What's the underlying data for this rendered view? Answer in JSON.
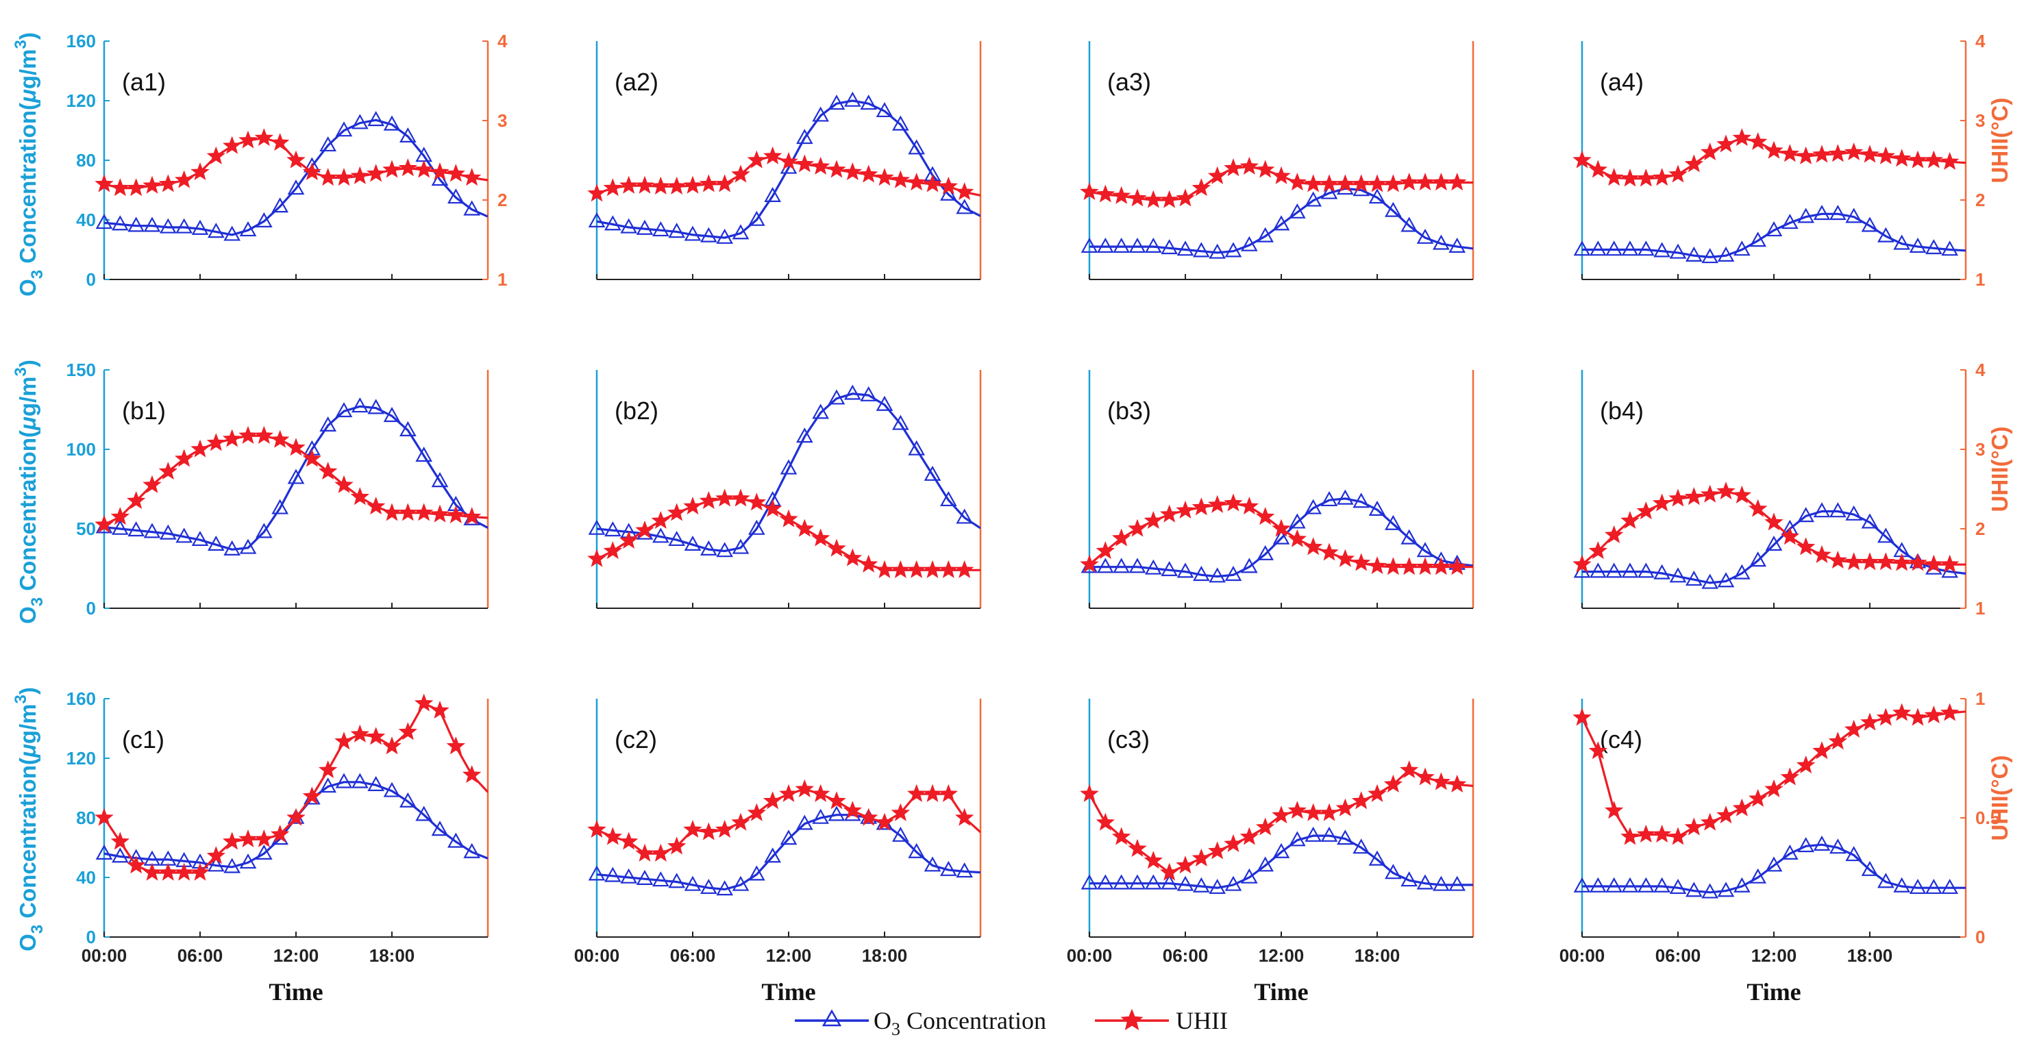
{
  "figure": {
    "xlabel": "Time",
    "left_axis_label": {
      "prefix": "O",
      "subscript": "3",
      "main": " Concentration(",
      "unit_mu": "μ",
      "unit_rest": "g/m",
      "superscript": "3",
      "close": ")"
    },
    "right_axis_label": "UHII(°C)",
    "legend": {
      "o3": {
        "prefix": "O",
        "subscript": "3",
        "suffix": " Concentration"
      },
      "uhii": "UHII"
    },
    "colors": {
      "o3": "#1f2fd6",
      "uhii": "#ee1c25",
      "left_axis": "#1aa0d8",
      "right_axis": "#f26a3a"
    }
  },
  "chart_data": [
    {
      "panel": "(a1)",
      "type": "line",
      "xticks": [
        "00:00",
        "06:00",
        "12:00",
        "18:00"
      ],
      "xlim": [
        0,
        24
      ],
      "ylim_left": [
        0,
        160
      ],
      "yticks_left": [
        "0",
        "40",
        "80",
        "120",
        "160"
      ],
      "ylim_right": [
        1,
        4
      ],
      "yticks_right": [
        "1",
        "2",
        "3",
        "4"
      ],
      "series": [
        {
          "name": "O3 Concentration",
          "axis": "left",
          "values": [
            38,
            37,
            36,
            36,
            35,
            35,
            34,
            32,
            30,
            33,
            39,
            49,
            61,
            76,
            90,
            100,
            105,
            107,
            104,
            96,
            83,
            67,
            55,
            47
          ]
        },
        {
          "name": "UHII",
          "axis": "right",
          "values": [
            2.2,
            2.15,
            2.15,
            2.18,
            2.2,
            2.25,
            2.35,
            2.55,
            2.68,
            2.75,
            2.78,
            2.72,
            2.5,
            2.35,
            2.28,
            2.28,
            2.3,
            2.33,
            2.38,
            2.4,
            2.38,
            2.35,
            2.33,
            2.28
          ]
        }
      ]
    },
    {
      "panel": "(a2)",
      "type": "line",
      "xticks": [
        "00:00",
        "06:00",
        "12:00",
        "18:00"
      ],
      "xlim": [
        0,
        24
      ],
      "ylim_left": [
        0,
        160
      ],
      "yticks_left": [],
      "ylim_right": [
        1,
        4
      ],
      "yticks_right": [],
      "series": [
        {
          "name": "O3 Concentration",
          "axis": "left",
          "values": [
            39,
            37,
            35,
            34,
            33,
            32,
            30,
            29,
            28,
            31,
            40,
            56,
            75,
            95,
            110,
            118,
            120,
            118,
            113,
            104,
            88,
            70,
            57,
            48
          ]
        },
        {
          "name": "UHII",
          "axis": "right",
          "values": [
            2.08,
            2.15,
            2.18,
            2.18,
            2.17,
            2.17,
            2.18,
            2.2,
            2.2,
            2.32,
            2.5,
            2.55,
            2.48,
            2.45,
            2.42,
            2.38,
            2.35,
            2.32,
            2.28,
            2.25,
            2.22,
            2.2,
            2.17,
            2.1
          ]
        }
      ]
    },
    {
      "panel": "(a3)",
      "type": "line",
      "xticks": [
        "00:00",
        "06:00",
        "12:00",
        "18:00"
      ],
      "xlim": [
        0,
        24
      ],
      "ylim_left": [
        0,
        160
      ],
      "yticks_left": [],
      "ylim_right": [
        1,
        4
      ],
      "yticks_right": [],
      "series": [
        {
          "name": "O3 Concentration",
          "axis": "left",
          "values": [
            22,
            22,
            22,
            22,
            22,
            21,
            20,
            19,
            18,
            19,
            23,
            29,
            37,
            45,
            53,
            58,
            61,
            60,
            55,
            46,
            36,
            28,
            24,
            22
          ]
        },
        {
          "name": "UHII",
          "axis": "right",
          "values": [
            2.1,
            2.07,
            2.05,
            2.02,
            2.0,
            2.0,
            2.02,
            2.15,
            2.3,
            2.4,
            2.42,
            2.38,
            2.3,
            2.22,
            2.2,
            2.2,
            2.2,
            2.2,
            2.2,
            2.2,
            2.22,
            2.22,
            2.22,
            2.22
          ]
        }
      ]
    },
    {
      "panel": "(a4)",
      "type": "line",
      "xticks": [
        "00:00",
        "06:00",
        "12:00",
        "18:00"
      ],
      "xlim": [
        0,
        24
      ],
      "ylim_left": [
        0,
        160
      ],
      "yticks_left": [],
      "ylim_right": [
        1,
        4
      ],
      "yticks_right": [
        "1",
        "2",
        "3",
        "4"
      ],
      "series": [
        {
          "name": "O3 Concentration",
          "axis": "left",
          "values": [
            20,
            20,
            20,
            20,
            20,
            19,
            18,
            16,
            15,
            16,
            20,
            26,
            33,
            38,
            42,
            44,
            44,
            42,
            36,
            29,
            24,
            22,
            21,
            20
          ]
        },
        {
          "name": "UHII",
          "axis": "right",
          "values": [
            2.5,
            2.38,
            2.28,
            2.27,
            2.27,
            2.28,
            2.32,
            2.45,
            2.6,
            2.7,
            2.78,
            2.73,
            2.62,
            2.58,
            2.55,
            2.57,
            2.58,
            2.6,
            2.57,
            2.55,
            2.52,
            2.5,
            2.5,
            2.48
          ]
        }
      ]
    },
    {
      "panel": "(b1)",
      "type": "line",
      "xticks": [
        "00:00",
        "06:00",
        "12:00",
        "18:00"
      ],
      "xlim": [
        0,
        24
      ],
      "ylim_left": [
        0,
        150
      ],
      "yticks_left": [
        "0",
        "50",
        "100",
        "150"
      ],
      "ylim_right": [
        1,
        4
      ],
      "yticks_right": [],
      "series": [
        {
          "name": "O3 Concentration",
          "axis": "left",
          "values": [
            51,
            50,
            49,
            48,
            47,
            45,
            43,
            40,
            37,
            38,
            48,
            63,
            82,
            100,
            115,
            124,
            127,
            126,
            121,
            112,
            96,
            80,
            65,
            56
          ]
        },
        {
          "name": "UHII",
          "axis": "right",
          "values": [
            2.05,
            2.15,
            2.35,
            2.55,
            2.72,
            2.88,
            3.0,
            3.08,
            3.13,
            3.17,
            3.17,
            3.12,
            3.02,
            2.88,
            2.72,
            2.55,
            2.4,
            2.28,
            2.2,
            2.2,
            2.2,
            2.18,
            2.17,
            2.15
          ]
        }
      ]
    },
    {
      "panel": "(b2)",
      "type": "line",
      "xticks": [
        "00:00",
        "06:00",
        "12:00",
        "18:00"
      ],
      "xlim": [
        0,
        24
      ],
      "ylim_left": [
        0,
        150
      ],
      "yticks_left": [],
      "ylim_right": [
        1,
        4
      ],
      "yticks_right": [],
      "series": [
        {
          "name": "O3 Concentration",
          "axis": "left",
          "values": [
            50,
            49,
            48,
            47,
            45,
            43,
            40,
            37,
            36,
            38,
            50,
            68,
            88,
            108,
            123,
            132,
            135,
            134,
            128,
            116,
            100,
            84,
            68,
            57
          ]
        },
        {
          "name": "UHII",
          "axis": "right",
          "values": [
            1.62,
            1.72,
            1.85,
            1.98,
            2.1,
            2.2,
            2.28,
            2.35,
            2.38,
            2.38,
            2.33,
            2.25,
            2.12,
            2.0,
            1.88,
            1.75,
            1.63,
            1.55,
            1.48,
            1.48,
            1.48,
            1.48,
            1.48,
            1.48
          ]
        }
      ]
    },
    {
      "panel": "(b3)",
      "type": "line",
      "xticks": [
        "00:00",
        "06:00",
        "12:00",
        "18:00"
      ],
      "xlim": [
        0,
        24
      ],
      "ylim_left": [
        0,
        150
      ],
      "yticks_left": [],
      "ylim_right": [
        1,
        4
      ],
      "yticks_right": [],
      "series": [
        {
          "name": "O3 Concentration",
          "axis": "left",
          "values": [
            26,
            26,
            26,
            26,
            25,
            24,
            23,
            21,
            20,
            21,
            26,
            34,
            44,
            54,
            63,
            68,
            69,
            67,
            62,
            53,
            44,
            36,
            30,
            28
          ]
        },
        {
          "name": "UHII",
          "axis": "right",
          "values": [
            1.55,
            1.72,
            1.88,
            2.0,
            2.1,
            2.18,
            2.23,
            2.27,
            2.3,
            2.32,
            2.28,
            2.15,
            2.0,
            1.87,
            1.77,
            1.7,
            1.62,
            1.57,
            1.53,
            1.52,
            1.52,
            1.52,
            1.52,
            1.52
          ]
        }
      ]
    },
    {
      "panel": "(b4)",
      "type": "line",
      "xticks": [
        "00:00",
        "06:00",
        "12:00",
        "18:00"
      ],
      "xlim": [
        0,
        24
      ],
      "ylim_left": [
        0,
        150
      ],
      "yticks_left": [],
      "ylim_right": [
        1,
        4
      ],
      "yticks_right": [
        "1",
        "2",
        "3",
        "4"
      ],
      "series": [
        {
          "name": "O3 Concentration",
          "axis": "left",
          "values": [
            23,
            23,
            23,
            23,
            23,
            22,
            20,
            18,
            16,
            17,
            22,
            30,
            40,
            50,
            58,
            61,
            61,
            59,
            54,
            45,
            36,
            29,
            25,
            23
          ]
        },
        {
          "name": "UHII",
          "axis": "right",
          "values": [
            1.55,
            1.72,
            1.92,
            2.1,
            2.22,
            2.32,
            2.38,
            2.4,
            2.43,
            2.47,
            2.42,
            2.25,
            2.08,
            1.9,
            1.77,
            1.67,
            1.6,
            1.58,
            1.58,
            1.58,
            1.57,
            1.57,
            1.55,
            1.55
          ]
        }
      ]
    },
    {
      "panel": "(c1)",
      "type": "line",
      "xticks": [
        "00:00",
        "06:00",
        "12:00",
        "18:00"
      ],
      "xlim": [
        0,
        24
      ],
      "ylim_left": [
        0,
        160
      ],
      "yticks_left": [
        "0",
        "40",
        "80",
        "120",
        "160"
      ],
      "ylim_right": [
        0,
        1
      ],
      "yticks_right": [],
      "series": [
        {
          "name": "O3 Concentration",
          "axis": "left",
          "values": [
            56,
            54,
            53,
            52,
            52,
            51,
            50,
            48,
            47,
            50,
            56,
            66,
            80,
            93,
            101,
            104,
            104,
            102,
            98,
            91,
            82,
            72,
            64,
            57
          ]
        },
        {
          "name": "UHII",
          "axis": "right",
          "values": [
            0.5,
            0.4,
            0.3,
            0.27,
            0.27,
            0.27,
            0.27,
            0.34,
            0.4,
            0.41,
            0.41,
            0.43,
            0.5,
            0.59,
            0.7,
            0.82,
            0.85,
            0.84,
            0.8,
            0.86,
            0.98,
            0.95,
            0.8,
            0.68
          ]
        }
      ]
    },
    {
      "panel": "(c2)",
      "type": "line",
      "xticks": [
        "00:00",
        "06:00",
        "12:00",
        "18:00"
      ],
      "xlim": [
        0,
        24
      ],
      "ylim_left": [
        0,
        160
      ],
      "yticks_left": [],
      "ylim_right": [
        0,
        1
      ],
      "yticks_right": [],
      "series": [
        {
          "name": "O3 Concentration",
          "axis": "left",
          "values": [
            42,
            41,
            40,
            39,
            38,
            37,
            35,
            33,
            32,
            35,
            42,
            54,
            66,
            76,
            80,
            82,
            82,
            80,
            76,
            68,
            57,
            48,
            45,
            44
          ]
        },
        {
          "name": "UHII",
          "axis": "right",
          "values": [
            0.45,
            0.42,
            0.4,
            0.35,
            0.35,
            0.38,
            0.45,
            0.44,
            0.45,
            0.48,
            0.52,
            0.57,
            0.6,
            0.62,
            0.6,
            0.57,
            0.53,
            0.5,
            0.48,
            0.52,
            0.6,
            0.6,
            0.6,
            0.5
          ]
        }
      ]
    },
    {
      "panel": "(c3)",
      "type": "line",
      "xticks": [
        "00:00",
        "06:00",
        "12:00",
        "18:00"
      ],
      "xlim": [
        0,
        24
      ],
      "ylim_left": [
        0,
        160
      ],
      "yticks_left": [],
      "ylim_right": [
        0,
        1
      ],
      "yticks_right": [],
      "series": [
        {
          "name": "O3 Concentration",
          "axis": "left",
          "values": [
            36,
            36,
            36,
            36,
            36,
            36,
            35,
            34,
            33,
            35,
            40,
            48,
            57,
            65,
            68,
            68,
            66,
            60,
            52,
            43,
            38,
            36,
            35,
            35
          ]
        },
        {
          "name": "UHII",
          "axis": "right",
          "values": [
            0.6,
            0.48,
            0.42,
            0.37,
            0.32,
            0.27,
            0.3,
            0.33,
            0.36,
            0.39,
            0.42,
            0.46,
            0.51,
            0.53,
            0.52,
            0.52,
            0.54,
            0.57,
            0.6,
            0.64,
            0.7,
            0.67,
            0.65,
            0.64
          ]
        }
      ]
    },
    {
      "panel": "(c4)",
      "type": "line",
      "xticks": [
        "00:00",
        "06:00",
        "12:00",
        "18:00"
      ],
      "xlim": [
        0,
        24
      ],
      "ylim_left": [
        0,
        160
      ],
      "yticks_left": [],
      "ylim_right": [
        0,
        1
      ],
      "yticks_right": [
        "0",
        "0.5",
        "1"
      ],
      "series": [
        {
          "name": "O3 Concentration",
          "axis": "left",
          "values": [
            34,
            34,
            34,
            34,
            34,
            34,
            33,
            31,
            30,
            31,
            34,
            40,
            48,
            56,
            61,
            62,
            60,
            55,
            45,
            37,
            34,
            33,
            33,
            33
          ]
        },
        {
          "name": "UHII",
          "axis": "right",
          "values": [
            0.92,
            0.78,
            0.53,
            0.42,
            0.43,
            0.43,
            0.42,
            0.46,
            0.48,
            0.51,
            0.54,
            0.58,
            0.62,
            0.67,
            0.72,
            0.78,
            0.82,
            0.87,
            0.9,
            0.92,
            0.94,
            0.92,
            0.93,
            0.94
          ]
        }
      ]
    }
  ]
}
